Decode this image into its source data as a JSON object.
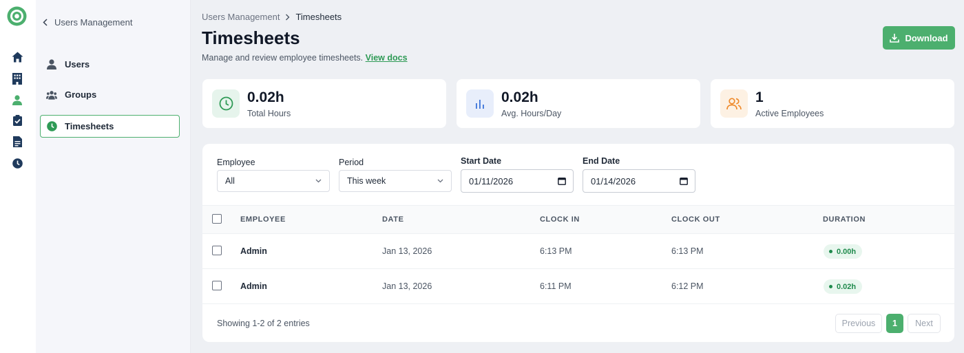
{
  "sidebar": {
    "back_label": "Users Management",
    "items": [
      {
        "label": "Users",
        "icon": "user-icon"
      },
      {
        "label": "Groups",
        "icon": "groups-icon"
      },
      {
        "label": "Timesheets",
        "icon": "clock-icon",
        "active": true
      }
    ]
  },
  "rail": {
    "icons": [
      "home-icon",
      "building-icon",
      "user-icon",
      "clipboard-check-icon",
      "document-icon",
      "clock-icon"
    ]
  },
  "breadcrumb": {
    "parent": "Users Management",
    "current": "Timesheets"
  },
  "page": {
    "title": "Timesheets",
    "subtitle": "Manage and review employee timesheets.",
    "docs_link": "View docs",
    "download_label": "Download"
  },
  "stats": [
    {
      "value": "0.02h",
      "label": "Total Hours",
      "icon": "clock-icon"
    },
    {
      "value": "0.02h",
      "label": "Avg. Hours/Day",
      "icon": "bar-chart-icon"
    },
    {
      "value": "1",
      "label": "Active Employees",
      "icon": "users-icon"
    }
  ],
  "filters": {
    "employee_label": "Employee",
    "employee_value": "All",
    "period_label": "Period",
    "period_value": "This week",
    "start_label": "Start Date",
    "start_value": "01/11/2026",
    "end_label": "End Date",
    "end_value": "01/14/2026"
  },
  "table": {
    "headers": [
      "EMPLOYEE",
      "DATE",
      "CLOCK IN",
      "CLOCK OUT",
      "DURATION"
    ],
    "rows": [
      {
        "employee": "Admin",
        "date": "Jan 13, 2026",
        "clock_in": "6:13 PM",
        "clock_out": "6:13 PM",
        "duration": "0.00h"
      },
      {
        "employee": "Admin",
        "date": "Jan 13, 2026",
        "clock_in": "6:11 PM",
        "clock_out": "6:12 PM",
        "duration": "0.02h"
      }
    ]
  },
  "pagination": {
    "summary": "Showing 1-2 of 2 entries",
    "previous": "Previous",
    "current_page": "1",
    "next": "Next"
  },
  "colors": {
    "accent": "#4caf6e",
    "accent_dark": "#2e9a55",
    "duration_badge_bg": "#e8f6ee",
    "stat_clock_bg": "#e6f4ec",
    "stat_chart_bg": "#e8eefb",
    "stat_users_bg": "#fdf1e3"
  }
}
